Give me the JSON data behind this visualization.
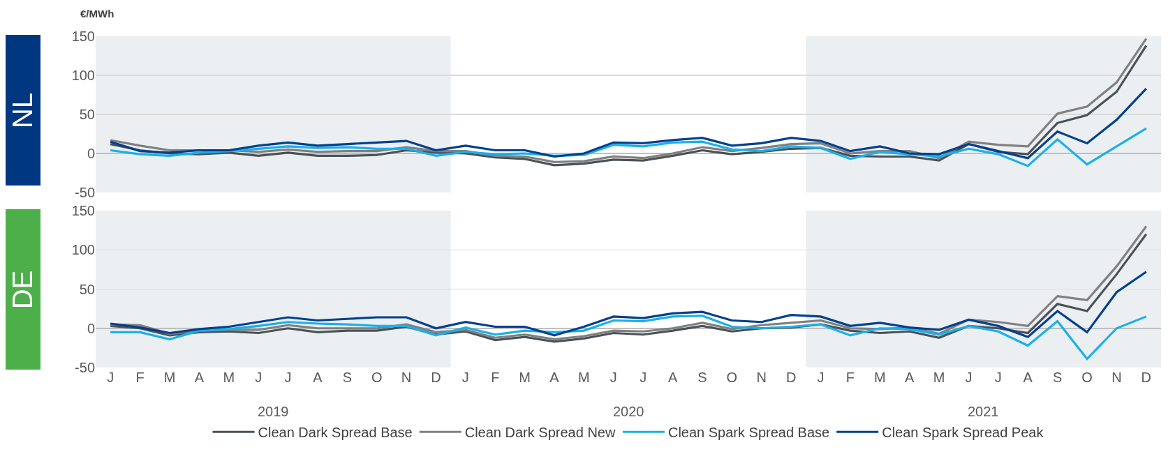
{
  "chart_data": [
    {
      "type": "line",
      "title": "NL",
      "ylabel": "€/MWh",
      "categories": [
        null,
        null,
        null,
        null,
        null,
        null,
        null,
        null,
        null,
        null,
        null,
        null,
        null,
        null,
        null,
        null,
        null,
        null,
        null,
        null,
        null,
        null,
        null,
        null,
        null,
        null,
        null,
        null,
        null,
        null,
        null,
        null,
        null,
        null,
        null,
        null
      ],
      "series": [
        {
          "color": "#4a5257",
          "values": [
            12,
            4,
            0,
            -1,
            1,
            -3,
            1,
            -3,
            -3,
            -2,
            4,
            1,
            0,
            -5,
            -7,
            -15,
            -13,
            -8,
            -9,
            -3,
            4,
            -1,
            2,
            6,
            7,
            -3,
            -4,
            -4,
            -9,
            12,
            2,
            -1,
            39,
            49,
            79,
            138
          ]
        },
        {
          "color": "#808080",
          "values": [
            17,
            10,
            4,
            4,
            4,
            2,
            5,
            2,
            3,
            3,
            8,
            3,
            3,
            -3,
            -4,
            -11,
            -10,
            -4,
            -6,
            0,
            8,
            3,
            7,
            12,
            13,
            0,
            3,
            3,
            -6,
            15,
            11,
            9,
            51,
            60,
            91,
            147
          ]
        },
        {
          "color": "#1ab0ea",
          "values": [
            4,
            -1,
            -3,
            1,
            3,
            6,
            9,
            7,
            8,
            6,
            6,
            -3,
            2,
            -1,
            0,
            -3,
            -2,
            11,
            9,
            14,
            15,
            5,
            3,
            9,
            7,
            -7,
            2,
            -1,
            -4,
            6,
            -1,
            -16,
            18,
            -14,
            9,
            32
          ]
        },
        {
          "color": "#00408f",
          "values": [
            15,
            3,
            1,
            4,
            4,
            10,
            14,
            10,
            12,
            14,
            16,
            4,
            10,
            4,
            4,
            -4,
            0,
            14,
            13,
            17,
            20,
            10,
            13,
            20,
            16,
            3,
            9,
            0,
            -1,
            12,
            3,
            -6,
            28,
            13,
            43,
            83
          ]
        }
      ],
      "ylim": [
        -50,
        150
      ],
      "yticks": [
        -50,
        0,
        50,
        100,
        150
      ],
      "grid": "y",
      "legend": false,
      "tick_labels": "y",
      "line_style": "solid",
      "marker": "none"
    },
    {
      "type": "line",
      "title": "DE",
      "categories": [
        "J",
        "F",
        "M",
        "A",
        "M",
        "J",
        "J",
        "A",
        "S",
        "O",
        "N",
        "D",
        "J",
        "F",
        "M",
        "A",
        "M",
        "J",
        "J",
        "A",
        "S",
        "O",
        "N",
        "D",
        "J",
        "F",
        "M",
        "A",
        "M",
        "J",
        "J",
        "A",
        "S",
        "O",
        "N",
        "D"
      ],
      "series": [
        {
          "name": "Clean Dark Spread Base",
          "color": "#4a5257",
          "values": [
            3,
            0,
            -9,
            -5,
            -4,
            -6,
            0,
            -5,
            -3,
            -3,
            2,
            -8,
            -4,
            -15,
            -11,
            -17,
            -13,
            -6,
            -8,
            -3,
            3,
            -4,
            0,
            1,
            5,
            -3,
            -6,
            -4,
            -12,
            3,
            0,
            -6,
            31,
            22,
            69,
            120
          ]
        },
        {
          "name": "Clean Dark Spread New",
          "color": "#808080",
          "values": [
            5,
            4,
            -7,
            -3,
            -2,
            -2,
            4,
            0,
            0,
            0,
            5,
            -5,
            -2,
            -12,
            -8,
            -14,
            -10,
            -3,
            -4,
            0,
            7,
            -1,
            4,
            7,
            10,
            0,
            -1,
            1,
            -7,
            11,
            8,
            3,
            41,
            36,
            79,
            130
          ]
        },
        {
          "name": "Clean Spark Spread Base",
          "color": "#1ab0ea",
          "values": [
            -5,
            -5,
            -14,
            -3,
            -1,
            3,
            8,
            6,
            5,
            3,
            3,
            -9,
            1,
            -8,
            -3,
            -5,
            -3,
            10,
            9,
            15,
            16,
            2,
            0,
            2,
            5,
            -9,
            0,
            -1,
            -8,
            3,
            -4,
            -22,
            9,
            -39,
            0,
            15
          ]
        },
        {
          "name": "Clean Spark Spread Peak",
          "color": "#00408f",
          "values": [
            6,
            1,
            -6,
            -1,
            2,
            8,
            14,
            10,
            12,
            14,
            14,
            0,
            8,
            2,
            2,
            -9,
            2,
            15,
            13,
            19,
            21,
            10,
            8,
            17,
            15,
            3,
            7,
            1,
            -2,
            11,
            3,
            -11,
            22,
            -5,
            46,
            72
          ]
        }
      ],
      "ylim": [
        -50,
        150
      ],
      "yticks": [
        -50,
        0,
        50,
        100,
        150
      ],
      "annotations": [
        "2019",
        "2020",
        "2021"
      ],
      "grid": "y",
      "legend": "bottom",
      "line_style": "solid",
      "marker": "none"
    }
  ]
}
